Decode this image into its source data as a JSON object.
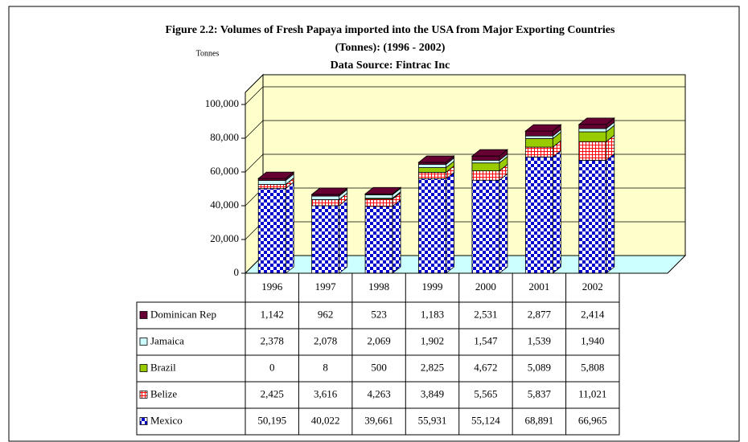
{
  "chart_data": {
    "type": "bar",
    "stacked": true,
    "title": "Figure 2.2: Volumes of Fresh Papaya imported into the USA from Major Exporting Countries",
    "subtitle": "(Tonnes): (1996 - 2002)",
    "source": "Data Source: Fintrac Inc",
    "ylabel": "Tonnes",
    "categories": [
      "1996",
      "1997",
      "1998",
      "1999",
      "2000",
      "2001",
      "2002"
    ],
    "series": [
      {
        "name": "Dominican Rep",
        "color": "#660033",
        "values": [
          1142,
          962,
          523,
          1183,
          2531,
          2877,
          2414
        ],
        "value_labels": [
          "1,142",
          "962",
          "523",
          "1,183",
          "2,531",
          "2,877",
          "2,414"
        ]
      },
      {
        "name": "Jamaica",
        "color": "#ccffff",
        "values": [
          2378,
          2078,
          2069,
          1902,
          1547,
          1539,
          1940
        ],
        "value_labels": [
          "2,378",
          "2,078",
          "2,069",
          "1,902",
          "1,547",
          "1,539",
          "1,940"
        ]
      },
      {
        "name": "Brazil",
        "color": "#99cc00",
        "values": [
          0,
          8,
          500,
          2825,
          4672,
          5089,
          5808
        ],
        "value_labels": [
          "0",
          "8",
          "500",
          "2,825",
          "4,672",
          "5,089",
          "5,808"
        ]
      },
      {
        "name": "Belize",
        "color": "#ff0000",
        "values": [
          2425,
          3616,
          4263,
          3849,
          5565,
          5837,
          11021
        ],
        "value_labels": [
          "2,425",
          "3,616",
          "4,263",
          "3,849",
          "5,565",
          "5,837",
          "11,021"
        ]
      },
      {
        "name": "Mexico",
        "color": "#0000cc",
        "values": [
          50195,
          40022,
          39661,
          55931,
          55124,
          68891,
          66965
        ],
        "value_labels": [
          "50,195",
          "40,022",
          "39,661",
          "55,931",
          "55,124",
          "68,891",
          "66,965"
        ]
      }
    ],
    "ylim": [
      0,
      100000
    ],
    "yticks": [
      0,
      {
        "value": 20000,
        "label": "20,000"
      },
      {
        "value": 40000,
        "label": "40,000"
      },
      {
        "value": 60000,
        "label": "60,000"
      },
      {
        "value": 80000,
        "label": "80,000"
      },
      {
        "value": 100000,
        "label": "100,000"
      }
    ],
    "grid": true
  }
}
